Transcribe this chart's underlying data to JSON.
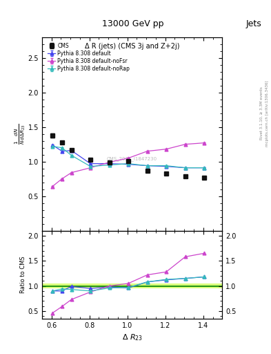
{
  "title_top": "13000 GeV pp",
  "title_right": "Jets",
  "plot_title": "Δ R (jets) (CMS 3j and Z+2j)",
  "ylabel_main": "$\\frac{1}{N}\\frac{dN}{d\\Delta R_{23}}$",
  "ylabel_ratio": "Ratio to CMS",
  "xlabel": "$\\Delta\\ R_{23}$",
  "right_label_top": "Rivet 3.1.10, ≥ 3.3M events",
  "right_label_bot": "mcplots.cern.ch [arXiv:1306.3436]",
  "watermark": "CMS_2021_I1847230",
  "cms_x": [
    0.605,
    0.655,
    0.705,
    0.805,
    0.905,
    1.005,
    1.105,
    1.205,
    1.305,
    1.405
  ],
  "cms_y": [
    1.38,
    1.28,
    1.17,
    1.03,
    0.99,
    1.01,
    0.87,
    0.83,
    0.79,
    0.77
  ],
  "cms_yerr": [
    0.03,
    0.02,
    0.02,
    0.02,
    0.015,
    0.015,
    0.015,
    0.015,
    0.015,
    0.015
  ],
  "py_default_x": [
    0.605,
    0.655,
    0.705,
    0.805,
    0.905,
    1.005,
    1.105,
    1.205,
    1.305,
    1.405
  ],
  "py_default_y": [
    1.24,
    1.15,
    1.16,
    0.97,
    0.97,
    0.96,
    0.94,
    0.93,
    0.91,
    0.91
  ],
  "py_default_yerr": [
    0.01,
    0.01,
    0.01,
    0.01,
    0.01,
    0.01,
    0.01,
    0.01,
    0.01,
    0.01
  ],
  "py_nofsr_x": [
    0.605,
    0.655,
    0.705,
    0.805,
    0.905,
    1.005,
    1.105,
    1.205,
    1.305,
    1.405
  ],
  "py_nofsr_y": [
    0.64,
    0.75,
    0.84,
    0.91,
    0.99,
    1.05,
    1.15,
    1.18,
    1.25,
    1.27
  ],
  "py_nofsr_yerr": [
    0.01,
    0.01,
    0.01,
    0.01,
    0.01,
    0.01,
    0.01,
    0.01,
    0.01,
    0.01
  ],
  "py_norap_x": [
    0.605,
    0.655,
    0.705,
    0.805,
    0.905,
    1.005,
    1.105,
    1.205,
    1.305,
    1.405
  ],
  "py_norap_y": [
    1.22,
    1.2,
    1.09,
    0.93,
    0.95,
    0.97,
    0.94,
    0.94,
    0.91,
    0.91
  ],
  "py_norap_yerr": [
    0.01,
    0.01,
    0.01,
    0.01,
    0.01,
    0.01,
    0.01,
    0.01,
    0.01,
    0.01
  ],
  "ratio_default_y": [
    0.9,
    0.9,
    0.99,
    0.95,
    0.98,
    0.96,
    1.08,
    1.12,
    1.15,
    1.18
  ],
  "ratio_nofsr_y": [
    0.46,
    0.59,
    0.73,
    0.88,
    1.0,
    1.05,
    1.22,
    1.28,
    1.58,
    1.65
  ],
  "ratio_norap_y": [
    0.9,
    0.94,
    0.93,
    0.9,
    0.96,
    0.97,
    1.08,
    1.13,
    1.15,
    1.18
  ],
  "color_default": "#4444ee",
  "color_nofsr": "#cc44cc",
  "color_norap": "#33bbbb",
  "color_cms": "#111111",
  "xlim": [
    0.55,
    1.5
  ],
  "ylim_main": [
    0.0,
    2.8
  ],
  "ylim_ratio": [
    0.35,
    2.1
  ],
  "yticks_main": [
    0.5,
    1.0,
    1.5,
    2.0,
    2.5
  ],
  "yticks_ratio": [
    0.5,
    1.0,
    1.5,
    2.0
  ]
}
